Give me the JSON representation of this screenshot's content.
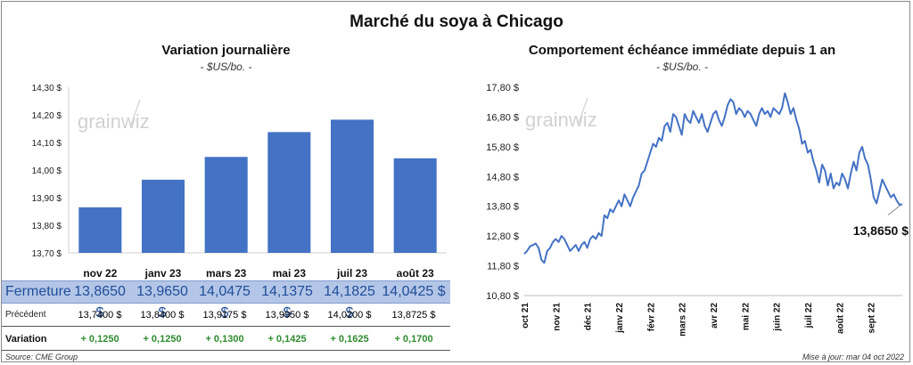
{
  "page": {
    "title": "Marché du soya à Chicago",
    "source": "Source: CME Group",
    "updated": "Mise à jour: mar 04 oct 2022",
    "watermark": "grainwiz"
  },
  "colors": {
    "bar": "#4472C4",
    "line": "#4472C4",
    "fermeture_bg": "#B4C6E7",
    "fermeture_text": "#1F4E9A",
    "variation_text": "#2E8B2E"
  },
  "chart_data": [
    {
      "type": "bar",
      "title": "Variation journalière",
      "subtitle": "- $US/bo. -",
      "categories": [
        "nov 22",
        "janv 23",
        "mars 23",
        "mai 23",
        "juil 23",
        "août 23"
      ],
      "values": [
        13.865,
        13.965,
        14.0475,
        14.1375,
        14.1825,
        14.0425
      ],
      "ylim": [
        13.7,
        14.3
      ],
      "yticks": [
        "13,70 $",
        "13,80 $",
        "13,90 $",
        "14,00 $",
        "14,10 $",
        "14,20 $",
        "14,30 $"
      ],
      "grid": false
    },
    {
      "type": "line",
      "title": "Comportement échéance immédiate depuis 1 an",
      "subtitle": "- $US/bo. -",
      "x_start": "2021-10-04",
      "x_end": "2022-10-04",
      "xticks": [
        "oct 21",
        "nov 21",
        "déc 21",
        "janv 22",
        "févr 22",
        "mars 22",
        "avr 22",
        "mai 22",
        "juin 22",
        "juil 22",
        "août 22",
        "sept 22"
      ],
      "yticks": [
        "10,80 $",
        "11,80 $",
        "12,80 $",
        "13,80 $",
        "14,80 $",
        "15,80 $",
        "16,80 $",
        "17,80 $"
      ],
      "ylim": [
        10.8,
        17.8
      ],
      "last_label": "13,8650 $",
      "series": [
        {
          "values": [
            12.2,
            12.3,
            12.45,
            12.5,
            12.55,
            12.4,
            12.0,
            11.9,
            12.3,
            12.4,
            12.6,
            12.7,
            12.6,
            12.8,
            12.7,
            12.5,
            12.3,
            12.4,
            12.5,
            12.3,
            12.5,
            12.6,
            12.4,
            12.7,
            12.8,
            12.7,
            12.9,
            12.8,
            13.5,
            13.4,
            13.7,
            13.6,
            13.8,
            14.0,
            13.8,
            14.2,
            14.0,
            13.8,
            14.1,
            14.3,
            14.5,
            14.9,
            15.0,
            15.3,
            15.6,
            15.9,
            15.8,
            16.1,
            16.0,
            16.5,
            16.6,
            16.3,
            16.9,
            16.8,
            16.5,
            16.2,
            16.9,
            16.7,
            16.6,
            17.0,
            16.8,
            16.6,
            16.9,
            16.5,
            16.3,
            16.6,
            16.9,
            17.0,
            16.7,
            16.5,
            16.8,
            17.2,
            17.4,
            17.3,
            16.9,
            17.1,
            17.0,
            16.8,
            17.0,
            16.9,
            16.7,
            16.5,
            16.9,
            17.1,
            16.9,
            17.0,
            16.8,
            17.1,
            17.0,
            16.9,
            17.1,
            17.6,
            17.3,
            16.9,
            17.1,
            16.7,
            16.4,
            15.9,
            16.0,
            15.6,
            15.7,
            15.3,
            15.0,
            14.6,
            15.2,
            15.0,
            14.5,
            14.9,
            14.4,
            14.6,
            14.5,
            14.9,
            14.7,
            14.4,
            14.9,
            15.3,
            15.0,
            15.6,
            15.8,
            15.4,
            15.2,
            14.7,
            14.1,
            13.9,
            14.3,
            14.7,
            14.5,
            14.3,
            14.1,
            14.2,
            14.0,
            13.85,
            13.865
          ]
        }
      ]
    }
  ],
  "table": {
    "rows": [
      {
        "label": "Fermeture",
        "values": [
          "13,8650  $",
          "13,9650  $",
          "14,0475  $",
          "14,1375  $",
          "14,1825  $",
          "14,0425  $"
        ]
      },
      {
        "label": "Précédent",
        "values": [
          "13,7400  $",
          "13,8400  $",
          "13,9175  $",
          "13,9950  $",
          "14,0200  $",
          "13,8725  $"
        ]
      },
      {
        "label": "Variation",
        "values": [
          "+ 0,1250",
          "+ 0,1250",
          "+ 0,1300",
          "+ 0,1425",
          "+ 0,1625",
          "+ 0,1700"
        ]
      }
    ]
  }
}
